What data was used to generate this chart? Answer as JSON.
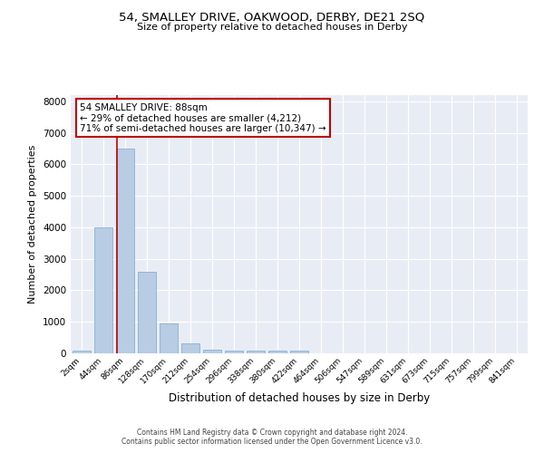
{
  "title": "54, SMALLEY DRIVE, OAKWOOD, DERBY, DE21 2SQ",
  "subtitle": "Size of property relative to detached houses in Derby",
  "xlabel": "Distribution of detached houses by size in Derby",
  "ylabel": "Number of detached properties",
  "bar_labels": [
    "2sqm",
    "44sqm",
    "86sqm",
    "128sqm",
    "170sqm",
    "212sqm",
    "254sqm",
    "296sqm",
    "338sqm",
    "380sqm",
    "422sqm",
    "464sqm",
    "506sqm",
    "547sqm",
    "589sqm",
    "631sqm",
    "673sqm",
    "715sqm",
    "757sqm",
    "799sqm",
    "841sqm"
  ],
  "bar_values": [
    80,
    4000,
    6500,
    2600,
    960,
    310,
    120,
    95,
    75,
    90,
    75,
    0,
    0,
    0,
    0,
    0,
    0,
    0,
    0,
    0,
    0
  ],
  "bar_color": "#b8cce4",
  "bar_edge_color": "#7ba7c9",
  "marker_color": "#c00000",
  "annotation_text": "54 SMALLEY DRIVE: 88sqm\n← 29% of detached houses are smaller (4,212)\n71% of semi-detached houses are larger (10,347) →",
  "annotation_box_color": "#ffffff",
  "annotation_box_edge": "#c00000",
  "ylim": [
    0,
    8200
  ],
  "yticks": [
    0,
    1000,
    2000,
    3000,
    4000,
    5000,
    6000,
    7000,
    8000
  ],
  "plot_bg_color": "#e8edf5",
  "footer_line1": "Contains HM Land Registry data © Crown copyright and database right 2024.",
  "footer_line2": "Contains public sector information licensed under the Open Government Licence v3.0."
}
